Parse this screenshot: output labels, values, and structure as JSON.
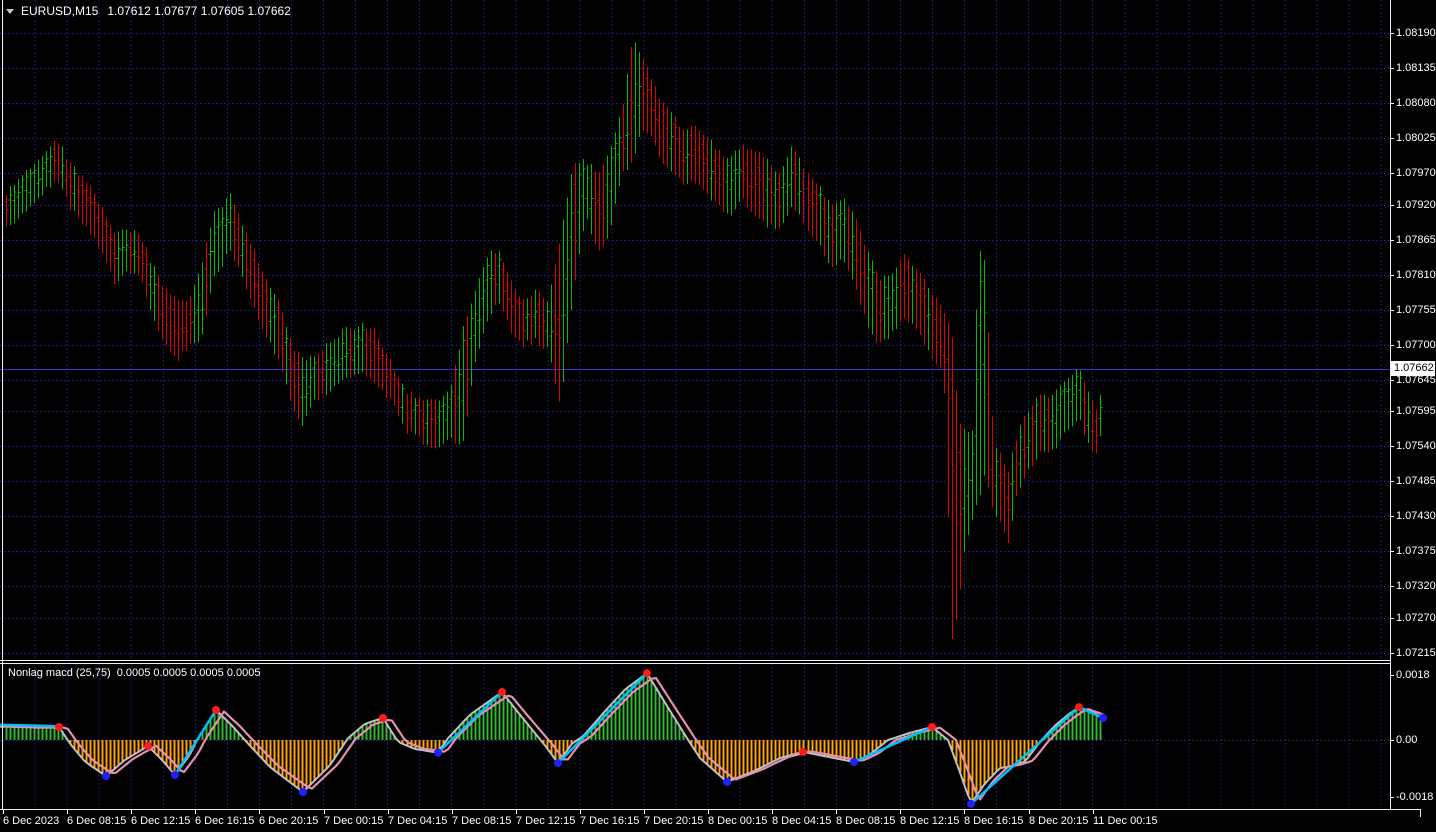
{
  "colors": {
    "background": "#000000",
    "grid": "#2121A3",
    "bar_up": "#00BE00",
    "bar_down": "#E00000",
    "hist_up": "#2FB92F",
    "hist_down": "#FFA500",
    "macd_line_gray": "#C0C0C0",
    "macd_line_pink": "#E58FB0",
    "macd_line_cyan": "#00BFFF",
    "dot_red": "#FF1A1A",
    "dot_blue": "#2020FF",
    "bid_line": "#3333CC",
    "panel_border": "#EDEDED",
    "axis_text": "#FFFFFF"
  },
  "main_chart": {
    "title": {
      "symbol": "EURUSD,M15",
      "ohlc": "1.07612 1.07677 1.07605 1.07662"
    },
    "current_price": "1.07662",
    "price_axis_labels": [
      "1.08190",
      "1.08135",
      "1.08080",
      "1.08025",
      "1.07970",
      "1.07920",
      "1.07865",
      "1.07810",
      "1.07755",
      "1.07700",
      "1.07645",
      "1.07595",
      "1.07540",
      "1.07485",
      "1.07430",
      "1.07375",
      "1.07320",
      "1.07270",
      "1.07215"
    ],
    "time_axis_labels": [
      "6 Dec 2023",
      "6 Dec 08:15",
      "6 Dec 12:15",
      "6 Dec 16:15",
      "6 Dec 20:15",
      "7 Dec 00:15",
      "7 Dec 04:15",
      "7 Dec 08:15",
      "7 Dec 12:15",
      "7 Dec 16:15",
      "7 Dec 20:15",
      "8 Dec 00:15",
      "8 Dec 04:15",
      "8 Dec 08:15",
      "8 Dec 12:15",
      "8 Dec 16:15",
      "8 Dec 20:15",
      "11 Dec 00:15"
    ]
  },
  "indicator": {
    "title": "Nonlag macd (25,75)",
    "values": "0.0005 0.0005 0.0005 0.0005",
    "axis_labels": [
      "0.0018",
      "0.00",
      "-0.0018"
    ]
  },
  "chart_data": [
    {
      "type": "bar",
      "subtype": "ohlc-bar-chart",
      "title": "EURUSD,M15",
      "ohlc_header_values": [
        1.07612,
        1.07677,
        1.07605,
        1.07662
      ],
      "current_price": 1.07662,
      "y_ticks": [
        1.0819,
        1.08135,
        1.0808,
        1.08025,
        1.0797,
        1.0792,
        1.07865,
        1.0781,
        1.07755,
        1.077,
        1.07645,
        1.07595,
        1.0754,
        1.07485,
        1.0743,
        1.07375,
        1.0732,
        1.0727,
        1.07215
      ],
      "x_tick_labels": [
        "6 Dec 2023",
        "6 Dec 08:15",
        "6 Dec 12:15",
        "6 Dec 16:15",
        "6 Dec 20:15",
        "7 Dec 00:15",
        "7 Dec 04:15",
        "7 Dec 08:15",
        "7 Dec 12:15",
        "7 Dec 16:15",
        "7 Dec 20:15",
        "8 Dec 00:15",
        "8 Dec 04:15",
        "8 Dec 08:15",
        "8 Dec 12:15",
        "8 Dec 16:15",
        "8 Dec 20:15",
        "11 Dec 00:15"
      ],
      "x_unit": "chart px (M15 bars, ~4px per bar)",
      "price_envelope": [
        [
          4,
          1.07935,
          1.0788
        ],
        [
          20,
          1.07967,
          1.07904
        ],
        [
          35,
          1.0799,
          1.07927
        ],
        [
          50,
          1.08014,
          1.07951
        ],
        [
          57,
          1.08022,
          1.07959
        ],
        [
          70,
          1.07982,
          1.07912
        ],
        [
          85,
          1.07959,
          1.07888
        ],
        [
          100,
          1.07919,
          1.07849
        ],
        [
          115,
          1.07872,
          1.07794
        ],
        [
          127,
          1.0788,
          1.07817
        ],
        [
          140,
          1.07872,
          1.07809
        ],
        [
          152,
          1.07825,
          1.07739
        ],
        [
          165,
          1.07786,
          1.07699
        ],
        [
          177,
          1.0777,
          1.07676
        ],
        [
          188,
          1.0777,
          1.07699
        ],
        [
          200,
          1.07817,
          1.07699
        ],
        [
          213,
          1.07904,
          1.07802
        ],
        [
          230,
          1.07935,
          1.07849
        ],
        [
          245,
          1.0788,
          1.07794
        ],
        [
          262,
          1.07817,
          1.07723
        ],
        [
          278,
          1.0777,
          1.07676
        ],
        [
          295,
          1.07691,
          1.07589
        ],
        [
          303,
          1.07676,
          1.07573
        ],
        [
          315,
          1.07684,
          1.07613
        ],
        [
          330,
          1.07707,
          1.07628
        ],
        [
          345,
          1.07723,
          1.07644
        ],
        [
          360,
          1.07731,
          1.0766
        ],
        [
          375,
          1.07723,
          1.07636
        ],
        [
          390,
          1.07676,
          1.07613
        ],
        [
          405,
          1.07628,
          1.07566
        ],
        [
          420,
          1.07613,
          1.0755
        ],
        [
          437,
          1.07613,
          1.07534
        ],
        [
          450,
          1.07628,
          1.0755
        ],
        [
          462,
          1.07723,
          1.07542
        ],
        [
          475,
          1.07786,
          1.07676
        ],
        [
          487,
          1.07841,
          1.07739
        ],
        [
          497,
          1.07849,
          1.0777
        ],
        [
          510,
          1.07802,
          1.07723
        ],
        [
          522,
          1.0777,
          1.07699
        ],
        [
          535,
          1.07786,
          1.07707
        ],
        [
          548,
          1.0777,
          1.07691
        ],
        [
          560,
          1.07864,
          1.07605
        ],
        [
          572,
          1.07982,
          1.0777
        ],
        [
          585,
          1.0799,
          1.07904
        ],
        [
          598,
          1.07967,
          1.07841
        ],
        [
          610,
          1.08006,
          1.0788
        ],
        [
          622,
          1.08069,
          1.07967
        ],
        [
          633,
          1.08187,
          1.0799
        ],
        [
          640,
          1.08155,
          1.08037
        ],
        [
          650,
          1.08124,
          1.0803
        ],
        [
          660,
          1.08085,
          1.0799
        ],
        [
          672,
          1.08061,
          1.07975
        ],
        [
          683,
          1.08037,
          1.07951
        ],
        [
          693,
          1.08045,
          1.07959
        ],
        [
          705,
          1.0803,
          1.07943
        ],
        [
          718,
          1.08006,
          1.07919
        ],
        [
          730,
          1.0799,
          1.07904
        ],
        [
          742,
          1.08014,
          1.07927
        ],
        [
          752,
          1.08006,
          1.07912
        ],
        [
          765,
          1.07998,
          1.07888
        ],
        [
          778,
          1.07967,
          1.0788
        ],
        [
          792,
          1.08014,
          1.07919
        ],
        [
          805,
          1.07975,
          1.07888
        ],
        [
          818,
          1.07951,
          1.07857
        ],
        [
          830,
          1.07919,
          1.07825
        ],
        [
          843,
          1.07935,
          1.07833
        ],
        [
          855,
          1.07896,
          1.07786
        ],
        [
          868,
          1.07841,
          1.07723
        ],
        [
          880,
          1.07802,
          1.07699
        ],
        [
          893,
          1.07817,
          1.07723
        ],
        [
          905,
          1.07841,
          1.07739
        ],
        [
          917,
          1.07817,
          1.07723
        ],
        [
          930,
          1.07786,
          1.07684
        ],
        [
          943,
          1.07754,
          1.0766
        ],
        [
          952,
          1.0771,
          1.07227
        ],
        [
          958,
          1.07581,
          1.07293
        ],
        [
          965,
          1.07565,
          1.07385
        ],
        [
          972,
          1.07566,
          1.07424
        ],
        [
          978,
          1.07857,
          1.07455
        ],
        [
          985,
          1.07825,
          1.07503
        ],
        [
          993,
          1.0755,
          1.0744
        ],
        [
          1000,
          1.07526,
          1.07424
        ],
        [
          1008,
          1.07503,
          1.07385
        ],
        [
          1015,
          1.0755,
          1.07455
        ],
        [
          1023,
          1.07581,
          1.07487
        ],
        [
          1032,
          1.07605,
          1.07511
        ],
        [
          1040,
          1.07621,
          1.07534
        ],
        [
          1050,
          1.07613,
          1.07526
        ],
        [
          1060,
          1.07636,
          1.0755
        ],
        [
          1070,
          1.07652,
          1.07573
        ],
        [
          1080,
          1.0766,
          1.07581
        ],
        [
          1090,
          1.07621,
          1.07534
        ],
        [
          1098,
          1.07597,
          1.07526
        ],
        [
          1104,
          1.07672,
          1.07597
        ]
      ]
    },
    {
      "type": "bar",
      "subtype": "macd-histogram",
      "title": "Nonlag macd (25,75)",
      "header_values": [
        0.0005,
        0.0005,
        0.0005,
        0.0005
      ],
      "levels": [
        0.0018,
        0.0,
        -0.0018
      ],
      "anchors": [
        [
          0,
          0.00039
        ],
        [
          30,
          0.00036
        ],
        [
          59,
          0.00036
        ],
        [
          70,
          -0.0001
        ],
        [
          85,
          -0.0006
        ],
        [
          106,
          -0.001
        ],
        [
          125,
          -0.00055
        ],
        [
          148,
          -0.00017
        ],
        [
          162,
          -0.00055
        ],
        [
          175,
          -0.00097
        ],
        [
          190,
          -0.0004
        ],
        [
          198,
          5e-05
        ],
        [
          216,
          0.00083
        ],
        [
          232,
          0.0004
        ],
        [
          248,
          -0.0001
        ],
        [
          270,
          -0.00075
        ],
        [
          303,
          -0.00144
        ],
        [
          330,
          -0.0007
        ],
        [
          348,
          5e-05
        ],
        [
          365,
          0.00045
        ],
        [
          383,
          0.00061
        ],
        [
          398,
          -5e-05
        ],
        [
          415,
          -0.00025
        ],
        [
          438,
          -0.00035
        ],
        [
          448,
          5e-05
        ],
        [
          470,
          0.0007
        ],
        [
          502,
          0.00133
        ],
        [
          520,
          0.0007
        ],
        [
          545,
          -0.00015
        ],
        [
          558,
          -0.00064
        ],
        [
          572,
          -0.0001
        ],
        [
          583,
          0.0001
        ],
        [
          605,
          0.0008
        ],
        [
          625,
          0.0014
        ],
        [
          647,
          0.00185
        ],
        [
          668,
          0.0009
        ],
        [
          687,
          5e-05
        ],
        [
          700,
          -0.0005
        ],
        [
          727,
          -0.00116
        ],
        [
          755,
          -0.00085
        ],
        [
          780,
          -0.0005
        ],
        [
          803,
          -0.00033
        ],
        [
          825,
          -0.00045
        ],
        [
          854,
          -0.00061
        ],
        [
          870,
          -0.0004
        ],
        [
          888,
          0.0
        ],
        [
          910,
          0.0002
        ],
        [
          932,
          0.00036
        ],
        [
          948,
          0.0
        ],
        [
          960,
          -0.0009
        ],
        [
          971,
          -0.00177
        ],
        [
          985,
          -0.0012
        ],
        [
          1000,
          -0.00078
        ],
        [
          1012,
          -0.00072
        ],
        [
          1025,
          -0.0006
        ],
        [
          1040,
          -5e-05
        ],
        [
          1055,
          0.0004
        ],
        [
          1068,
          0.0007
        ],
        [
          1079,
          0.00091
        ],
        [
          1092,
          0.00078
        ],
        [
          1103,
          0.00061
        ]
      ],
      "cyan_segments": [
        [
          [
            0,
            0.00042
          ],
          [
            59,
            0.00038
          ]
        ],
        [
          [
            175,
            -0.00097
          ],
          [
            216,
            0.00083
          ]
        ],
        [
          [
            438,
            -0.00035
          ],
          [
            502,
            0.00133
          ]
        ],
        [
          [
            558,
            -0.00064
          ],
          [
            647,
            0.00185
          ]
        ],
        [
          [
            854,
            -0.00061
          ],
          [
            932,
            0.00036
          ]
        ],
        [
          [
            971,
            -0.00177
          ],
          [
            1079,
            0.00091
          ]
        ],
        [
          [
            1079,
            0.00091
          ],
          [
            1103,
            0.00061
          ]
        ]
      ],
      "red_dots": [
        [
          59,
          0.00036
        ],
        [
          148,
          -0.00017
        ],
        [
          216,
          0.00083
        ],
        [
          383,
          0.00061
        ],
        [
          502,
          0.00133
        ],
        [
          647,
          0.00185
        ],
        [
          803,
          -0.00033
        ],
        [
          932,
          0.00036
        ],
        [
          1079,
          0.00091
        ]
      ],
      "blue_dots": [
        [
          106,
          -0.001
        ],
        [
          175,
          -0.00097
        ],
        [
          303,
          -0.00144
        ],
        [
          438,
          -0.00035
        ],
        [
          558,
          -0.00064
        ],
        [
          727,
          -0.00116
        ],
        [
          854,
          -0.00061
        ],
        [
          971,
          -0.00177
        ],
        [
          1103,
          0.00061
        ]
      ]
    }
  ]
}
